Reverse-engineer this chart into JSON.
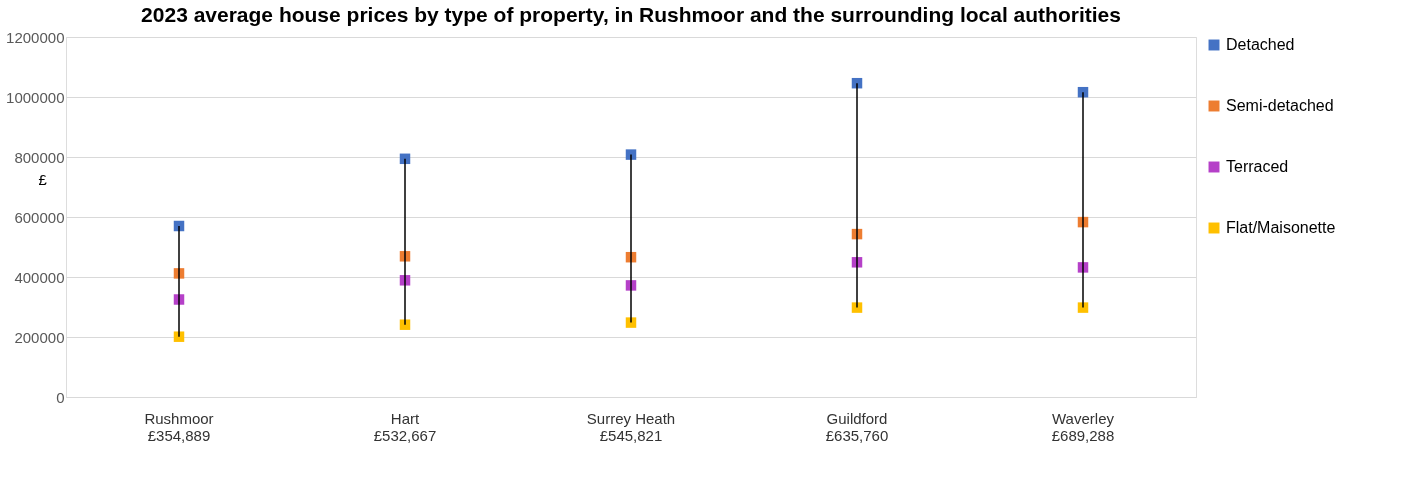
{
  "chart_data": {
    "type": "scatter",
    "title": "2023 average house prices by type of property, in Rushmoor and the surrounding local authorities",
    "ylabel": "£",
    "categories": [
      "Rushmoor\n£354,889",
      "Hart\n£532,667",
      "Surrey Heath\n£545,821",
      "Guildford\n£635,760",
      "Waverley\n£689,288"
    ],
    "series": [
      {
        "name": "Detached",
        "color": "#4472c4",
        "values": [
          570000,
          794000,
          808000,
          1046000,
          1016000
        ]
      },
      {
        "name": "Semi-detached",
        "color": "#ed7d31",
        "values": [
          412000,
          469000,
          466000,
          543000,
          583000
        ]
      },
      {
        "name": "Terraced",
        "color": "#b540c8",
        "values": [
          325000,
          389000,
          372000,
          449000,
          432000
        ]
      },
      {
        "name": "Flat/Maisonette",
        "color": "#ffc000",
        "values": [
          201000,
          241000,
          248000,
          298000,
          298000
        ]
      }
    ],
    "ylim": [
      0,
      1200000
    ],
    "yticks": [
      0,
      200000,
      400000,
      600000,
      800000,
      1000000,
      1200000
    ],
    "grid": "y",
    "legend": "right",
    "marker": "square"
  }
}
